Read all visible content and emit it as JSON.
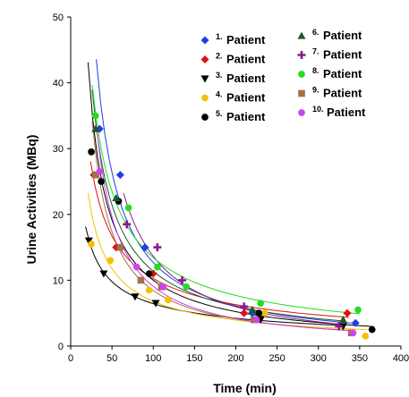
{
  "chart_data": {
    "type": "scatter",
    "xlabel": "Time (min)",
    "ylabel": "Urine Activities (MBq)",
    "xlim": [
      0,
      400
    ],
    "ylim": [
      0,
      50
    ],
    "xticks": [
      0,
      50,
      100,
      150,
      200,
      250,
      300,
      350,
      400
    ],
    "yticks": [
      0,
      10,
      20,
      30,
      40,
      50
    ],
    "grid": false,
    "legend_position": "top-right",
    "series": [
      {
        "name": "Patient",
        "number": "1.",
        "color": "#1f3fe0",
        "marker": "diamond",
        "x": [
          35,
          60,
          90,
          220,
          345
        ],
        "y": [
          33,
          26,
          15,
          5,
          3.5
        ]
      },
      {
        "name": "Patient",
        "number": "2.",
        "color": "#e01010",
        "marker": "diamond",
        "x": [
          28,
          55,
          100,
          210,
          335
        ],
        "y": [
          26,
          15,
          11,
          5,
          5
        ]
      },
      {
        "name": "Patient",
        "number": "3.",
        "color": "#000000",
        "marker": "triangle-down",
        "x": [
          22,
          40,
          78,
          103,
          230,
          330
        ],
        "y": [
          16,
          11,
          7.5,
          6.5,
          4,
          3
        ]
      },
      {
        "name": "Patient",
        "number": "4.",
        "color": "#f5c000",
        "marker": "circle",
        "x": [
          25,
          48,
          95,
          118,
          235,
          357
        ],
        "y": [
          15.5,
          13,
          8.5,
          7,
          5,
          1.5
        ]
      },
      {
        "name": "Patient",
        "number": "5.",
        "color": "#000000",
        "marker": "circle",
        "x": [
          25,
          37,
          58,
          95,
          228,
          365
        ],
        "y": [
          29.5,
          25,
          22,
          11,
          5,
          2.5
        ]
      },
      {
        "name": "Patient",
        "number": "6.",
        "color": "#1a5a2a",
        "marker": "triangle-up",
        "x": [
          30,
          55,
          110,
          220,
          330
        ],
        "y": [
          33,
          22.5,
          9,
          5.5,
          4
        ]
      },
      {
        "name": "Patient",
        "number": "7.",
        "color": "#8a1a8a",
        "marker": "plus",
        "x": [
          68,
          105,
          135,
          210,
          325
        ],
        "y": [
          18.5,
          15,
          10,
          6,
          3
        ]
      },
      {
        "name": "Patient",
        "number": "8.",
        "color": "#22dd22",
        "marker": "circle",
        "x": [
          30,
          70,
          105,
          140,
          230,
          348
        ],
        "y": [
          35,
          21,
          12,
          9,
          6.5,
          5.5
        ]
      },
      {
        "name": "Patient",
        "number": "9.",
        "color": "#a0724a",
        "marker": "square",
        "x": [
          30,
          60,
          85,
          110,
          222,
          340
        ],
        "y": [
          26,
          15,
          10,
          9,
          4,
          2
        ]
      },
      {
        "name": "Patient",
        "number": "10.",
        "color": "#cc44ee",
        "marker": "circle",
        "x": [
          35,
          80,
          112,
          225,
          342
        ],
        "y": [
          26.5,
          12,
          9,
          4,
          2
        ]
      }
    ]
  }
}
